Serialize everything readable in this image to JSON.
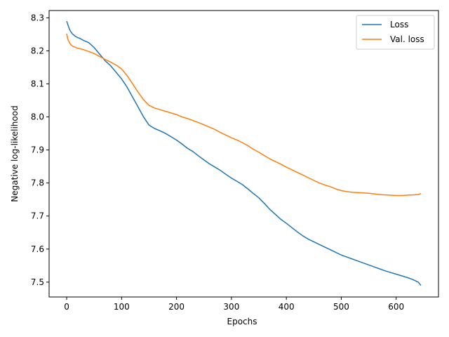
{
  "chart_data": {
    "type": "line",
    "title": "",
    "xlabel": "Epochs",
    "ylabel": "Negative log-likelihood",
    "xlim": [
      -32,
      677
    ],
    "ylim": [
      7.455,
      8.322
    ],
    "xticks": [
      0,
      100,
      200,
      300,
      400,
      500,
      600
    ],
    "yticks": [
      7.5,
      7.6,
      7.7,
      7.8,
      7.9,
      8.0,
      8.1,
      8.2,
      8.3
    ],
    "grid": false,
    "legend": "top-right",
    "series": [
      {
        "name": "Loss",
        "color": "#1f77b4",
        "x": [
          0,
          3,
          6,
          10,
          15,
          20,
          25,
          30,
          40,
          50,
          60,
          70,
          80,
          90,
          100,
          110,
          120,
          130,
          140,
          150,
          160,
          170,
          180,
          190,
          200,
          210,
          220,
          230,
          240,
          250,
          260,
          270,
          280,
          290,
          300,
          310,
          320,
          330,
          340,
          350,
          360,
          370,
          380,
          390,
          400,
          410,
          420,
          430,
          440,
          450,
          460,
          470,
          480,
          490,
          500,
          510,
          520,
          530,
          540,
          550,
          560,
          570,
          580,
          590,
          600,
          610,
          620,
          630,
          640,
          645
        ],
        "y": [
          8.29,
          8.275,
          8.262,
          8.252,
          8.245,
          8.24,
          8.237,
          8.232,
          8.225,
          8.21,
          8.19,
          8.17,
          8.155,
          8.135,
          8.115,
          8.09,
          8.06,
          8.03,
          8.0,
          7.975,
          7.965,
          7.958,
          7.95,
          7.94,
          7.93,
          7.918,
          7.905,
          7.895,
          7.882,
          7.87,
          7.858,
          7.848,
          7.838,
          7.826,
          7.815,
          7.805,
          7.795,
          7.782,
          7.768,
          7.755,
          7.738,
          7.72,
          7.705,
          7.69,
          7.678,
          7.665,
          7.652,
          7.64,
          7.63,
          7.622,
          7.614,
          7.606,
          7.598,
          7.59,
          7.582,
          7.576,
          7.57,
          7.564,
          7.558,
          7.552,
          7.546,
          7.54,
          7.534,
          7.529,
          7.524,
          7.519,
          7.514,
          7.508,
          7.5,
          7.49
        ]
      },
      {
        "name": "Val. loss",
        "color": "#ff7f0e",
        "x": [
          0,
          2,
          5,
          8,
          12,
          20,
          30,
          40,
          50,
          60,
          70,
          80,
          90,
          100,
          110,
          120,
          130,
          140,
          150,
          160,
          170,
          180,
          190,
          200,
          210,
          220,
          230,
          240,
          250,
          260,
          270,
          280,
          290,
          300,
          310,
          320,
          330,
          340,
          350,
          360,
          370,
          380,
          390,
          400,
          410,
          420,
          430,
          440,
          450,
          460,
          470,
          480,
          490,
          500,
          510,
          520,
          530,
          540,
          550,
          560,
          570,
          580,
          590,
          600,
          610,
          620,
          630,
          640,
          645
        ],
        "y": [
          8.252,
          8.235,
          8.225,
          8.218,
          8.213,
          8.208,
          8.204,
          8.198,
          8.192,
          8.183,
          8.174,
          8.166,
          8.157,
          8.145,
          8.125,
          8.1,
          8.075,
          8.052,
          8.035,
          8.027,
          8.022,
          8.017,
          8.012,
          8.007,
          8.0,
          7.995,
          7.989,
          7.983,
          7.976,
          7.969,
          7.962,
          7.953,
          7.945,
          7.937,
          7.93,
          7.922,
          7.913,
          7.902,
          7.893,
          7.883,
          7.873,
          7.865,
          7.857,
          7.848,
          7.84,
          7.832,
          7.824,
          7.816,
          7.808,
          7.8,
          7.794,
          7.789,
          7.782,
          7.777,
          7.774,
          7.772,
          7.771,
          7.77,
          7.769,
          7.767,
          7.765,
          7.764,
          7.763,
          7.762,
          7.762,
          7.763,
          7.764,
          7.765,
          7.768
        ]
      }
    ]
  }
}
